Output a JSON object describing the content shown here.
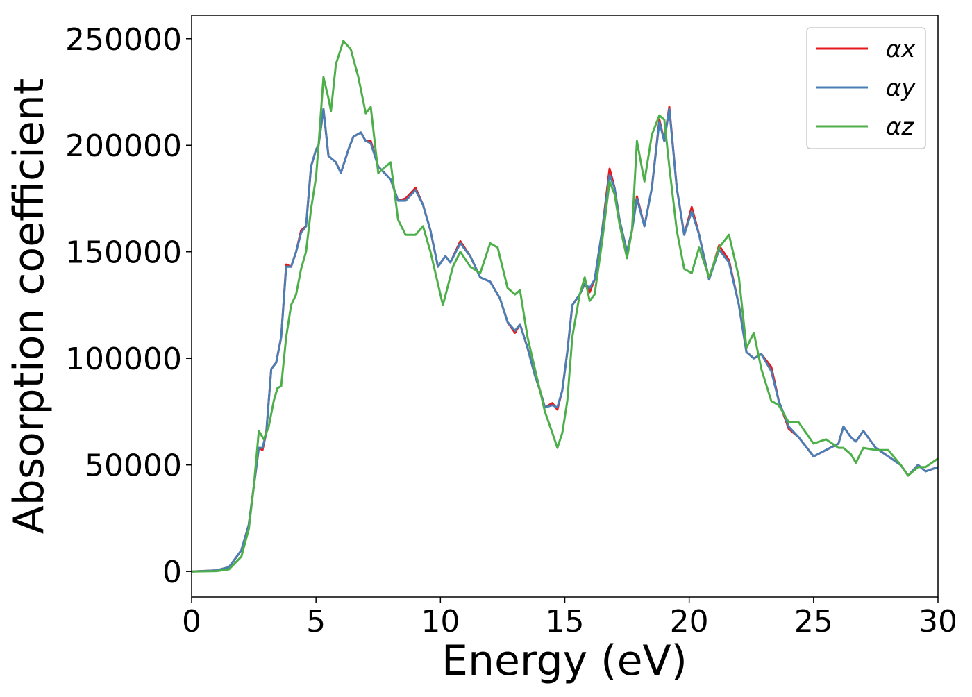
{
  "chart_data": {
    "type": "line",
    "xlabel": "Energy (eV)",
    "ylabel": "Absorption coefficient",
    "xlim": [
      0,
      30
    ],
    "xticks": [
      0,
      5,
      10,
      15,
      20,
      25,
      30
    ],
    "ylim": [
      -12000,
      261000
    ],
    "yticks": [
      0,
      50000,
      100000,
      150000,
      200000,
      250000
    ],
    "legend": "upper right",
    "series": [
      {
        "name": "αx",
        "color": "#e41a1c",
        "x": [
          0,
          1,
          1.5,
          2,
          2.3,
          2.5,
          2.7,
          2.85,
          3,
          3.2,
          3.4,
          3.6,
          3.8,
          4,
          4.2,
          4.4,
          4.6,
          4.8,
          5,
          5.1,
          5.3,
          5.5,
          5.8,
          6,
          6.3,
          6.5,
          6.8,
          7,
          7.2,
          7.5,
          8,
          8.3,
          8.6,
          9,
          9.3,
          9.6,
          9.9,
          10.2,
          10.4,
          10.8,
          11.2,
          11.6,
          12,
          12.4,
          12.7,
          13,
          13.2,
          13.5,
          13.8,
          14,
          14.2,
          14.5,
          14.7,
          14.9,
          15.1,
          15.3,
          15.6,
          15.8,
          16,
          16.2,
          16.5,
          16.8,
          17,
          17.2,
          17.5,
          17.7,
          17.9,
          18.2,
          18.5,
          18.8,
          19,
          19.2,
          19.5,
          19.8,
          20.1,
          20.4,
          20.8,
          21.2,
          21.6,
          22,
          22.3,
          22.6,
          22.9,
          23.3,
          23.6,
          24,
          24.4,
          25,
          25.5,
          26,
          26.2,
          26.5,
          26.7,
          27,
          27.5,
          28,
          28.5,
          28.8,
          29.2,
          29.5,
          30
        ],
        "values": [
          0,
          500,
          2000,
          10000,
          22000,
          40000,
          58000,
          57000,
          65000,
          95000,
          98000,
          110000,
          144000,
          143000,
          150000,
          160000,
          162000,
          190000,
          198000,
          200000,
          217000,
          195000,
          192000,
          187000,
          198000,
          204000,
          206000,
          202000,
          202000,
          190000,
          184000,
          174000,
          175000,
          180000,
          172000,
          160000,
          143000,
          148000,
          145000,
          155000,
          148000,
          138000,
          136000,
          128000,
          117000,
          112000,
          116000,
          105000,
          92000,
          85000,
          77000,
          79000,
          76000,
          85000,
          103000,
          125000,
          130000,
          135000,
          131000,
          137000,
          160000,
          189000,
          180000,
          165000,
          150000,
          160000,
          176000,
          162000,
          180000,
          212000,
          202000,
          218000,
          180000,
          158000,
          171000,
          158000,
          137000,
          153000,
          146000,
          125000,
          103000,
          100000,
          102000,
          96000,
          80000,
          67000,
          63000,
          54000,
          57000,
          60000,
          68000,
          63000,
          61000,
          66000,
          58000,
          54000,
          50000,
          45000,
          50000,
          47000,
          49000
        ]
      },
      {
        "name": "αy",
        "color": "#4a7fb5",
        "x": [
          0,
          1,
          1.5,
          2,
          2.3,
          2.5,
          2.7,
          2.85,
          3,
          3.2,
          3.4,
          3.6,
          3.8,
          4,
          4.2,
          4.4,
          4.6,
          4.8,
          5,
          5.1,
          5.3,
          5.5,
          5.8,
          6,
          6.3,
          6.5,
          6.8,
          7,
          7.2,
          7.5,
          8,
          8.3,
          8.6,
          9,
          9.3,
          9.6,
          9.9,
          10.2,
          10.4,
          10.8,
          11.2,
          11.6,
          12,
          12.4,
          12.7,
          13,
          13.2,
          13.5,
          13.8,
          14,
          14.2,
          14.5,
          14.7,
          14.9,
          15.1,
          15.3,
          15.6,
          15.8,
          16,
          16.2,
          16.5,
          16.8,
          17,
          17.2,
          17.5,
          17.7,
          17.9,
          18.2,
          18.5,
          18.8,
          19,
          19.2,
          19.5,
          19.8,
          20.1,
          20.4,
          20.8,
          21.2,
          21.6,
          22,
          22.3,
          22.6,
          22.9,
          23.3,
          23.6,
          24,
          24.4,
          25,
          25.5,
          26,
          26.2,
          26.5,
          26.7,
          27,
          27.5,
          28,
          28.5,
          28.8,
          29.2,
          29.5,
          30
        ],
        "values": [
          0,
          500,
          2000,
          10000,
          22000,
          40000,
          58000,
          58000,
          65000,
          95000,
          98000,
          110000,
          143000,
          143000,
          150000,
          159000,
          162000,
          190000,
          198000,
          200000,
          217000,
          195000,
          192000,
          187000,
          198000,
          204000,
          206000,
          202000,
          201000,
          190000,
          184000,
          174000,
          174000,
          179000,
          172000,
          160000,
          143000,
          148000,
          145000,
          154000,
          148000,
          138000,
          136000,
          128000,
          117000,
          113000,
          116000,
          105000,
          92000,
          85000,
          77000,
          78000,
          77000,
          85000,
          103000,
          125000,
          130000,
          135000,
          133000,
          137000,
          160000,
          186000,
          180000,
          165000,
          150000,
          160000,
          175000,
          162000,
          180000,
          211000,
          202000,
          217000,
          180000,
          158000,
          169000,
          158000,
          137000,
          151000,
          145000,
          125000,
          103000,
          100000,
          102000,
          94000,
          80000,
          68000,
          63000,
          54000,
          57000,
          60000,
          68000,
          63000,
          61000,
          66000,
          58000,
          54000,
          50000,
          45000,
          50000,
          47000,
          49000
        ]
      },
      {
        "name": "αz",
        "color": "#4daf4a",
        "x": [
          0,
          1,
          1.5,
          2,
          2.3,
          2.5,
          2.7,
          2.9,
          3.1,
          3.3,
          3.45,
          3.6,
          3.8,
          4,
          4.2,
          4.4,
          4.6,
          4.8,
          5,
          5.1,
          5.3,
          5.5,
          5.6,
          5.8,
          6.1,
          6.4,
          6.7,
          7,
          7.2,
          7.5,
          8,
          8.3,
          8.6,
          9,
          9.3,
          9.6,
          9.9,
          10.1,
          10.5,
          10.8,
          11.2,
          11.6,
          12,
          12.3,
          12.7,
          13,
          13.2,
          13.5,
          13.8,
          14,
          14.2,
          14.5,
          14.7,
          14.9,
          15.1,
          15.3,
          15.6,
          15.8,
          16,
          16.2,
          16.5,
          16.8,
          17,
          17.2,
          17.5,
          17.7,
          17.9,
          18.2,
          18.5,
          18.8,
          19,
          19.2,
          19.5,
          19.8,
          20.1,
          20.4,
          20.8,
          21.2,
          21.6,
          22,
          22.3,
          22.6,
          22.9,
          23.3,
          23.6,
          24,
          24.4,
          25,
          25.5,
          26,
          26.2,
          26.5,
          26.7,
          27,
          27.5,
          28,
          28.5,
          28.8,
          29.2,
          29.5,
          30
        ],
        "values": [
          0,
          200,
          1000,
          7000,
          20000,
          40000,
          66000,
          62000,
          68000,
          80000,
          86000,
          87000,
          110000,
          125000,
          130000,
          142000,
          150000,
          170000,
          185000,
          200000,
          232000,
          222000,
          216000,
          238000,
          249000,
          245000,
          232000,
          215000,
          218000,
          187000,
          192000,
          165000,
          158000,
          158000,
          162000,
          150000,
          135000,
          125000,
          143000,
          150000,
          143000,
          140000,
          154000,
          152000,
          133000,
          130000,
          132000,
          110000,
          95000,
          85000,
          75000,
          65000,
          58000,
          65000,
          80000,
          110000,
          130000,
          138000,
          127000,
          130000,
          155000,
          183000,
          177000,
          163000,
          147000,
          160000,
          202000,
          183000,
          205000,
          214000,
          212000,
          190000,
          160000,
          142000,
          140000,
          152000,
          138000,
          152000,
          158000,
          138000,
          105000,
          112000,
          95000,
          80000,
          78000,
          70000,
          70000,
          60000,
          62000,
          58000,
          58000,
          55000,
          51000,
          58000,
          57000,
          57000,
          50000,
          45000,
          49000,
          49000,
          53000
        ]
      }
    ]
  }
}
